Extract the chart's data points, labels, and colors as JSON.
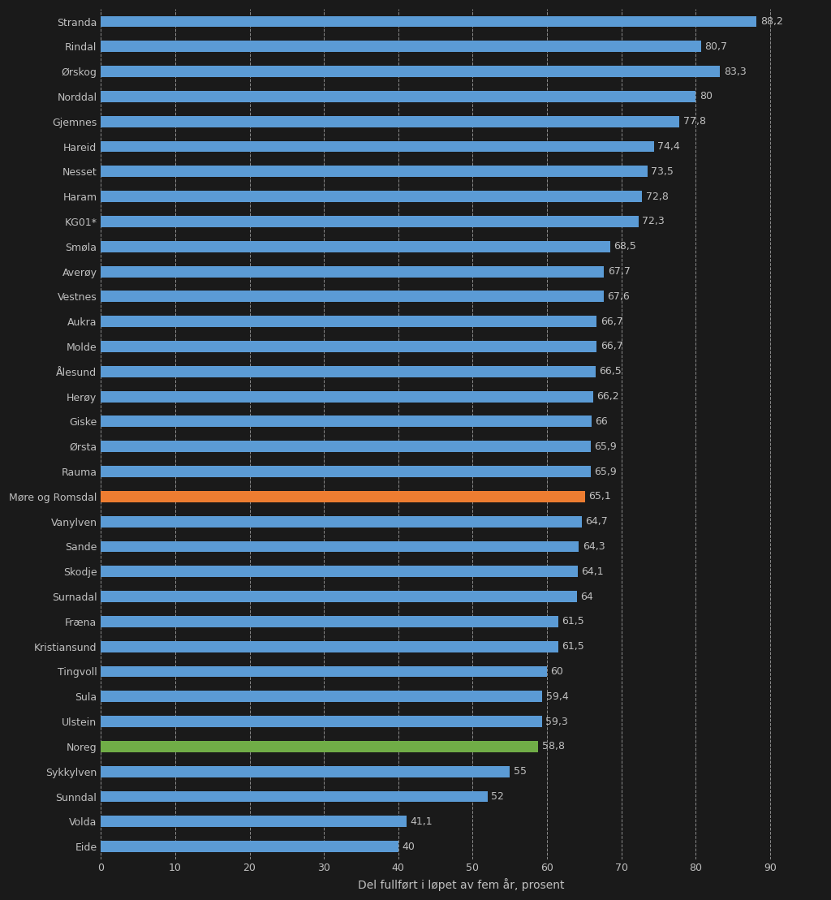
{
  "categories": [
    "Stranda",
    "Rindal",
    "Ørskog",
    "Norddal",
    "Gjemnes",
    "Hareid",
    "Nesset",
    "Haram",
    "KG01*",
    "Smøla",
    "Averøy",
    "Vestnes",
    "Aukra",
    "Molde",
    "Ålesund",
    "Herøy",
    "Giske",
    "Ørsta",
    "Rauma",
    "Møre og Romsdal",
    "Vanylven",
    "Sande",
    "Skodje",
    "Surnadal",
    "Fræna",
    "Kristiansund",
    "Tingvoll",
    "Sula",
    "Ulstein",
    "Noreg",
    "Sykkylven",
    "Sunndal",
    "Volda",
    "Eide"
  ],
  "values": [
    88.2,
    80.7,
    83.3,
    80,
    77.8,
    74.4,
    73.5,
    72.8,
    72.3,
    68.5,
    67.7,
    67.6,
    66.7,
    66.7,
    66.5,
    66.2,
    66,
    65.9,
    65.9,
    65.1,
    64.7,
    64.3,
    64.1,
    64,
    61.5,
    61.5,
    60,
    59.4,
    59.3,
    58.8,
    55,
    52,
    41.1,
    40
  ],
  "bar_colors": [
    "#5B9BD5",
    "#5B9BD5",
    "#5B9BD5",
    "#5B9BD5",
    "#5B9BD5",
    "#5B9BD5",
    "#5B9BD5",
    "#5B9BD5",
    "#5B9BD5",
    "#5B9BD5",
    "#5B9BD5",
    "#5B9BD5",
    "#5B9BD5",
    "#5B9BD5",
    "#5B9BD5",
    "#5B9BD5",
    "#5B9BD5",
    "#5B9BD5",
    "#5B9BD5",
    "#ED7D31",
    "#5B9BD5",
    "#5B9BD5",
    "#5B9BD5",
    "#5B9BD5",
    "#5B9BD5",
    "#5B9BD5",
    "#5B9BD5",
    "#5B9BD5",
    "#5B9BD5",
    "#70AD47",
    "#5B9BD5",
    "#5B9BD5",
    "#5B9BD5",
    "#5B9BD5"
  ],
  "value_labels": [
    "88,2",
    "80,7",
    "83,3",
    "80",
    "77,8",
    "74,4",
    "73,5",
    "72,8",
    "72,3",
    "68,5",
    "67,7",
    "67,6",
    "66,7",
    "66,7",
    "66,5",
    "66,2",
    "66",
    "65,9",
    "65,9",
    "65,1",
    "64,7",
    "64,3",
    "64,1",
    "64",
    "61,5",
    "61,5",
    "60",
    "59,4",
    "59,3",
    "58,8",
    "55",
    "52",
    "41,1",
    "40"
  ],
  "xlabel": "Del fullført i løpet av fem år, prosent",
  "xlim": [
    0,
    97
  ],
  "xticks": [
    0,
    10,
    20,
    30,
    40,
    50,
    60,
    70,
    80,
    90
  ],
  "background_color": "#1a1a1a",
  "text_color": "#C0C0C0",
  "bar_height": 0.45,
  "label_fontsize": 9,
  "tick_fontsize": 9,
  "xlabel_fontsize": 10
}
